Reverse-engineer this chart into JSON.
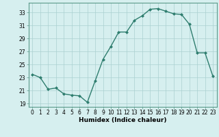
{
  "x": [
    0,
    1,
    2,
    3,
    4,
    5,
    6,
    7,
    8,
    9,
    10,
    11,
    12,
    13,
    14,
    15,
    16,
    17,
    18,
    19,
    20,
    21,
    22,
    23
  ],
  "y": [
    23.5,
    23.0,
    21.2,
    21.4,
    20.5,
    20.3,
    20.2,
    19.2,
    22.5,
    25.8,
    27.8,
    30.0,
    30.0,
    31.8,
    32.5,
    33.5,
    33.6,
    33.2,
    32.8,
    32.7,
    31.2,
    26.8,
    26.8,
    23.2
  ],
  "line_color": "#2e7d6e",
  "marker": "D",
  "marker_size": 2.0,
  "bg_color": "#d6efef",
  "grid_color": "#aad0d0",
  "xlabel": "Humidex (Indice chaleur)",
  "ylim": [
    18.5,
    34.5
  ],
  "xlim": [
    -0.5,
    23.5
  ],
  "yticks": [
    19,
    21,
    23,
    25,
    27,
    29,
    31,
    33
  ],
  "xticks": [
    0,
    1,
    2,
    3,
    4,
    5,
    6,
    7,
    8,
    9,
    10,
    11,
    12,
    13,
    14,
    15,
    16,
    17,
    18,
    19,
    20,
    21,
    22,
    23
  ],
  "tick_fontsize": 5.5,
  "xlabel_fontsize": 6.5,
  "line_width": 1.0
}
